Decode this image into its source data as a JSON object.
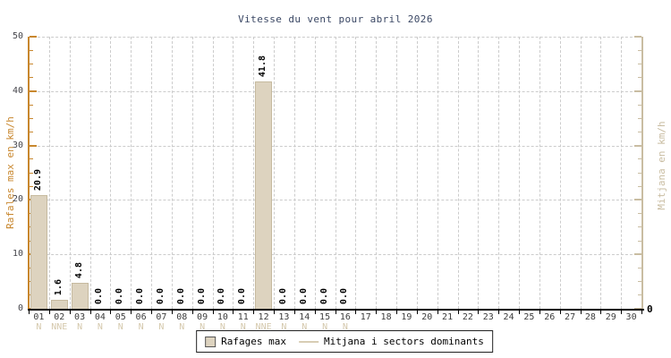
{
  "chart_data": {
    "type": "bar",
    "title": "Vitesse du vent pour abril 2026",
    "ylabel_left": "Rafales max en km/h",
    "ylabel_right": "Mitjana en km/h",
    "ylim": [
      0,
      50
    ],
    "yticks": [
      0,
      10,
      20,
      30,
      40,
      50
    ],
    "minor_tick_step": 2.5,
    "right_axis_zero_label": "0",
    "grid": "dashed",
    "x_categories": [
      "01",
      "02",
      "03",
      "04",
      "05",
      "06",
      "07",
      "08",
      "09",
      "10",
      "11",
      "12",
      "13",
      "14",
      "15",
      "16",
      "17",
      "18",
      "19",
      "20",
      "21",
      "22",
      "23",
      "24",
      "25",
      "26",
      "27",
      "28",
      "29",
      "30"
    ],
    "series": [
      {
        "name": "Rafages max",
        "values": [
          20.9,
          1.6,
          4.8,
          0,
          0,
          0,
          0,
          0,
          0,
          0,
          0,
          41.8,
          0,
          0,
          0,
          0,
          null,
          null,
          null,
          null,
          null,
          null,
          null,
          null,
          null,
          null,
          null,
          null,
          null,
          null
        ]
      }
    ],
    "value_labels": [
      "20.9",
      "1.6",
      "4.8",
      "0.0",
      "0.0",
      "0.0",
      "0.0",
      "0.0",
      "0.0",
      "0.0",
      "0.0",
      "41.8",
      "0.0",
      "0.0",
      "0.0",
      "0.0",
      "",
      "",
      "",
      "",
      "",
      "",
      "",
      "",
      "",
      "",
      "",
      "",
      "",
      ""
    ],
    "directions": [
      "N",
      "NNE",
      "N",
      "N",
      "N",
      "N",
      "N",
      "N",
      "N",
      "N",
      "N",
      "NNE",
      "N",
      "N",
      "N",
      "N",
      "",
      "",
      "",
      "",
      "",
      "",
      "",
      "",
      "",
      "",
      "",
      "",
      "",
      ""
    ],
    "legend": [
      {
        "label": "Rafages max",
        "swatch": "box"
      },
      {
        "label": "Mitjana i sectors dominants",
        "swatch": "line"
      }
    ],
    "legend_position": "bottom-center"
  },
  "colors": {
    "title": "#3a4764",
    "left_axis": "#c8872e",
    "right_axis": "#c9bda2",
    "bar_fill": "#ddd3bf",
    "bar_border": "#c6ba9f",
    "grid": "#cccccc",
    "tick_label": "#45454b",
    "day_label": "#3c3c3c",
    "direction_label": "#d5c9ad",
    "x_axis": "#000000",
    "background": "#ffffff"
  }
}
